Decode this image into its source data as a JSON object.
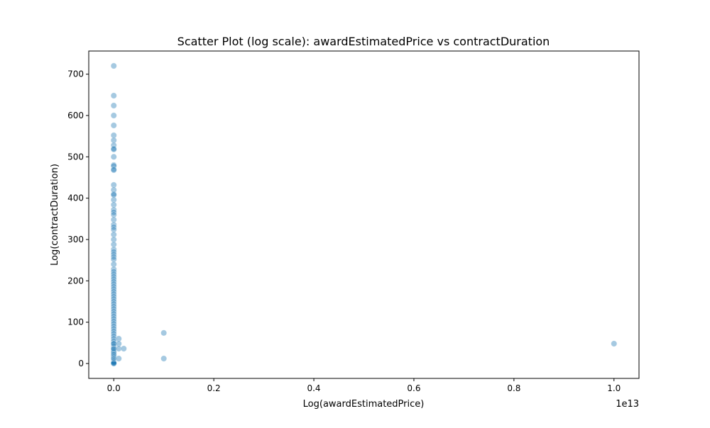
{
  "chart_data": {
    "type": "scatter",
    "title": "Scatter Plot (log scale): awardEstimatedPrice vs contractDuration",
    "xlabel": "Log(awardEstimatedPrice)",
    "ylabel": "Log(contractDuration)",
    "x_offset_text": "1e13",
    "xlim": [
      -0.05,
      1.05
    ],
    "ylim": [
      -36,
      756
    ],
    "x_tick_values": [
      0.0,
      0.2,
      0.4,
      0.6,
      0.8,
      1.0
    ],
    "x_tick_labels": [
      "0.0",
      "0.2",
      "0.4",
      "0.6",
      "0.8",
      "1.0"
    ],
    "y_tick_values": [
      0,
      100,
      200,
      300,
      400,
      500,
      600,
      700
    ],
    "y_tick_labels": [
      "0",
      "100",
      "200",
      "300",
      "400",
      "500",
      "600",
      "700"
    ],
    "grid": false,
    "point_color": "#1f77b4",
    "point_alpha": 0.4,
    "series": [
      {
        "x": [
          0,
          0,
          0,
          0,
          0,
          0,
          0,
          0,
          0,
          0,
          0,
          0,
          0,
          0,
          0,
          0,
          0,
          0,
          0,
          0,
          0,
          0,
          0,
          0,
          0,
          0,
          0,
          0,
          0,
          0,
          0,
          0,
          0,
          0,
          0,
          0,
          0,
          0,
          0,
          0,
          0,
          0,
          0,
          0,
          0,
          0,
          0,
          0,
          0,
          0,
          0,
          0,
          0,
          0,
          0,
          0,
          0,
          0,
          0,
          0,
          0,
          0,
          0,
          0,
          0,
          0,
          0,
          0,
          0,
          0,
          0,
          0,
          0,
          0,
          0,
          0,
          0,
          0,
          0,
          0,
          0,
          0,
          0,
          0,
          0,
          0,
          0,
          0,
          0,
          0,
          0,
          0,
          0.01,
          0.01,
          0.01,
          0.02,
          0.01,
          0.1,
          0.1,
          1.0
        ],
        "y": [
          720,
          648,
          624,
          600,
          576,
          552,
          540,
          528,
          520,
          518,
          500,
          480,
          478,
          470,
          468,
          432,
          420,
          410,
          408,
          396,
          384,
          372,
          366,
          360,
          348,
          336,
          330,
          324,
          312,
          300,
          288,
          276,
          270,
          264,
          258,
          252,
          240,
          228,
          222,
          216,
          210,
          204,
          198,
          192,
          186,
          180,
          174,
          168,
          162,
          156,
          150,
          144,
          138,
          132,
          126,
          120,
          114,
          108,
          102,
          96,
          90,
          84,
          78,
          72,
          66,
          60,
          54,
          48,
          42,
          36,
          33,
          30,
          27,
          24,
          21,
          18,
          15,
          12,
          10,
          9,
          8,
          7,
          6,
          5,
          4,
          3,
          2,
          1,
          0,
          36,
          48,
          12,
          60,
          48,
          36,
          36,
          12,
          74,
          12,
          48
        ]
      }
    ]
  }
}
